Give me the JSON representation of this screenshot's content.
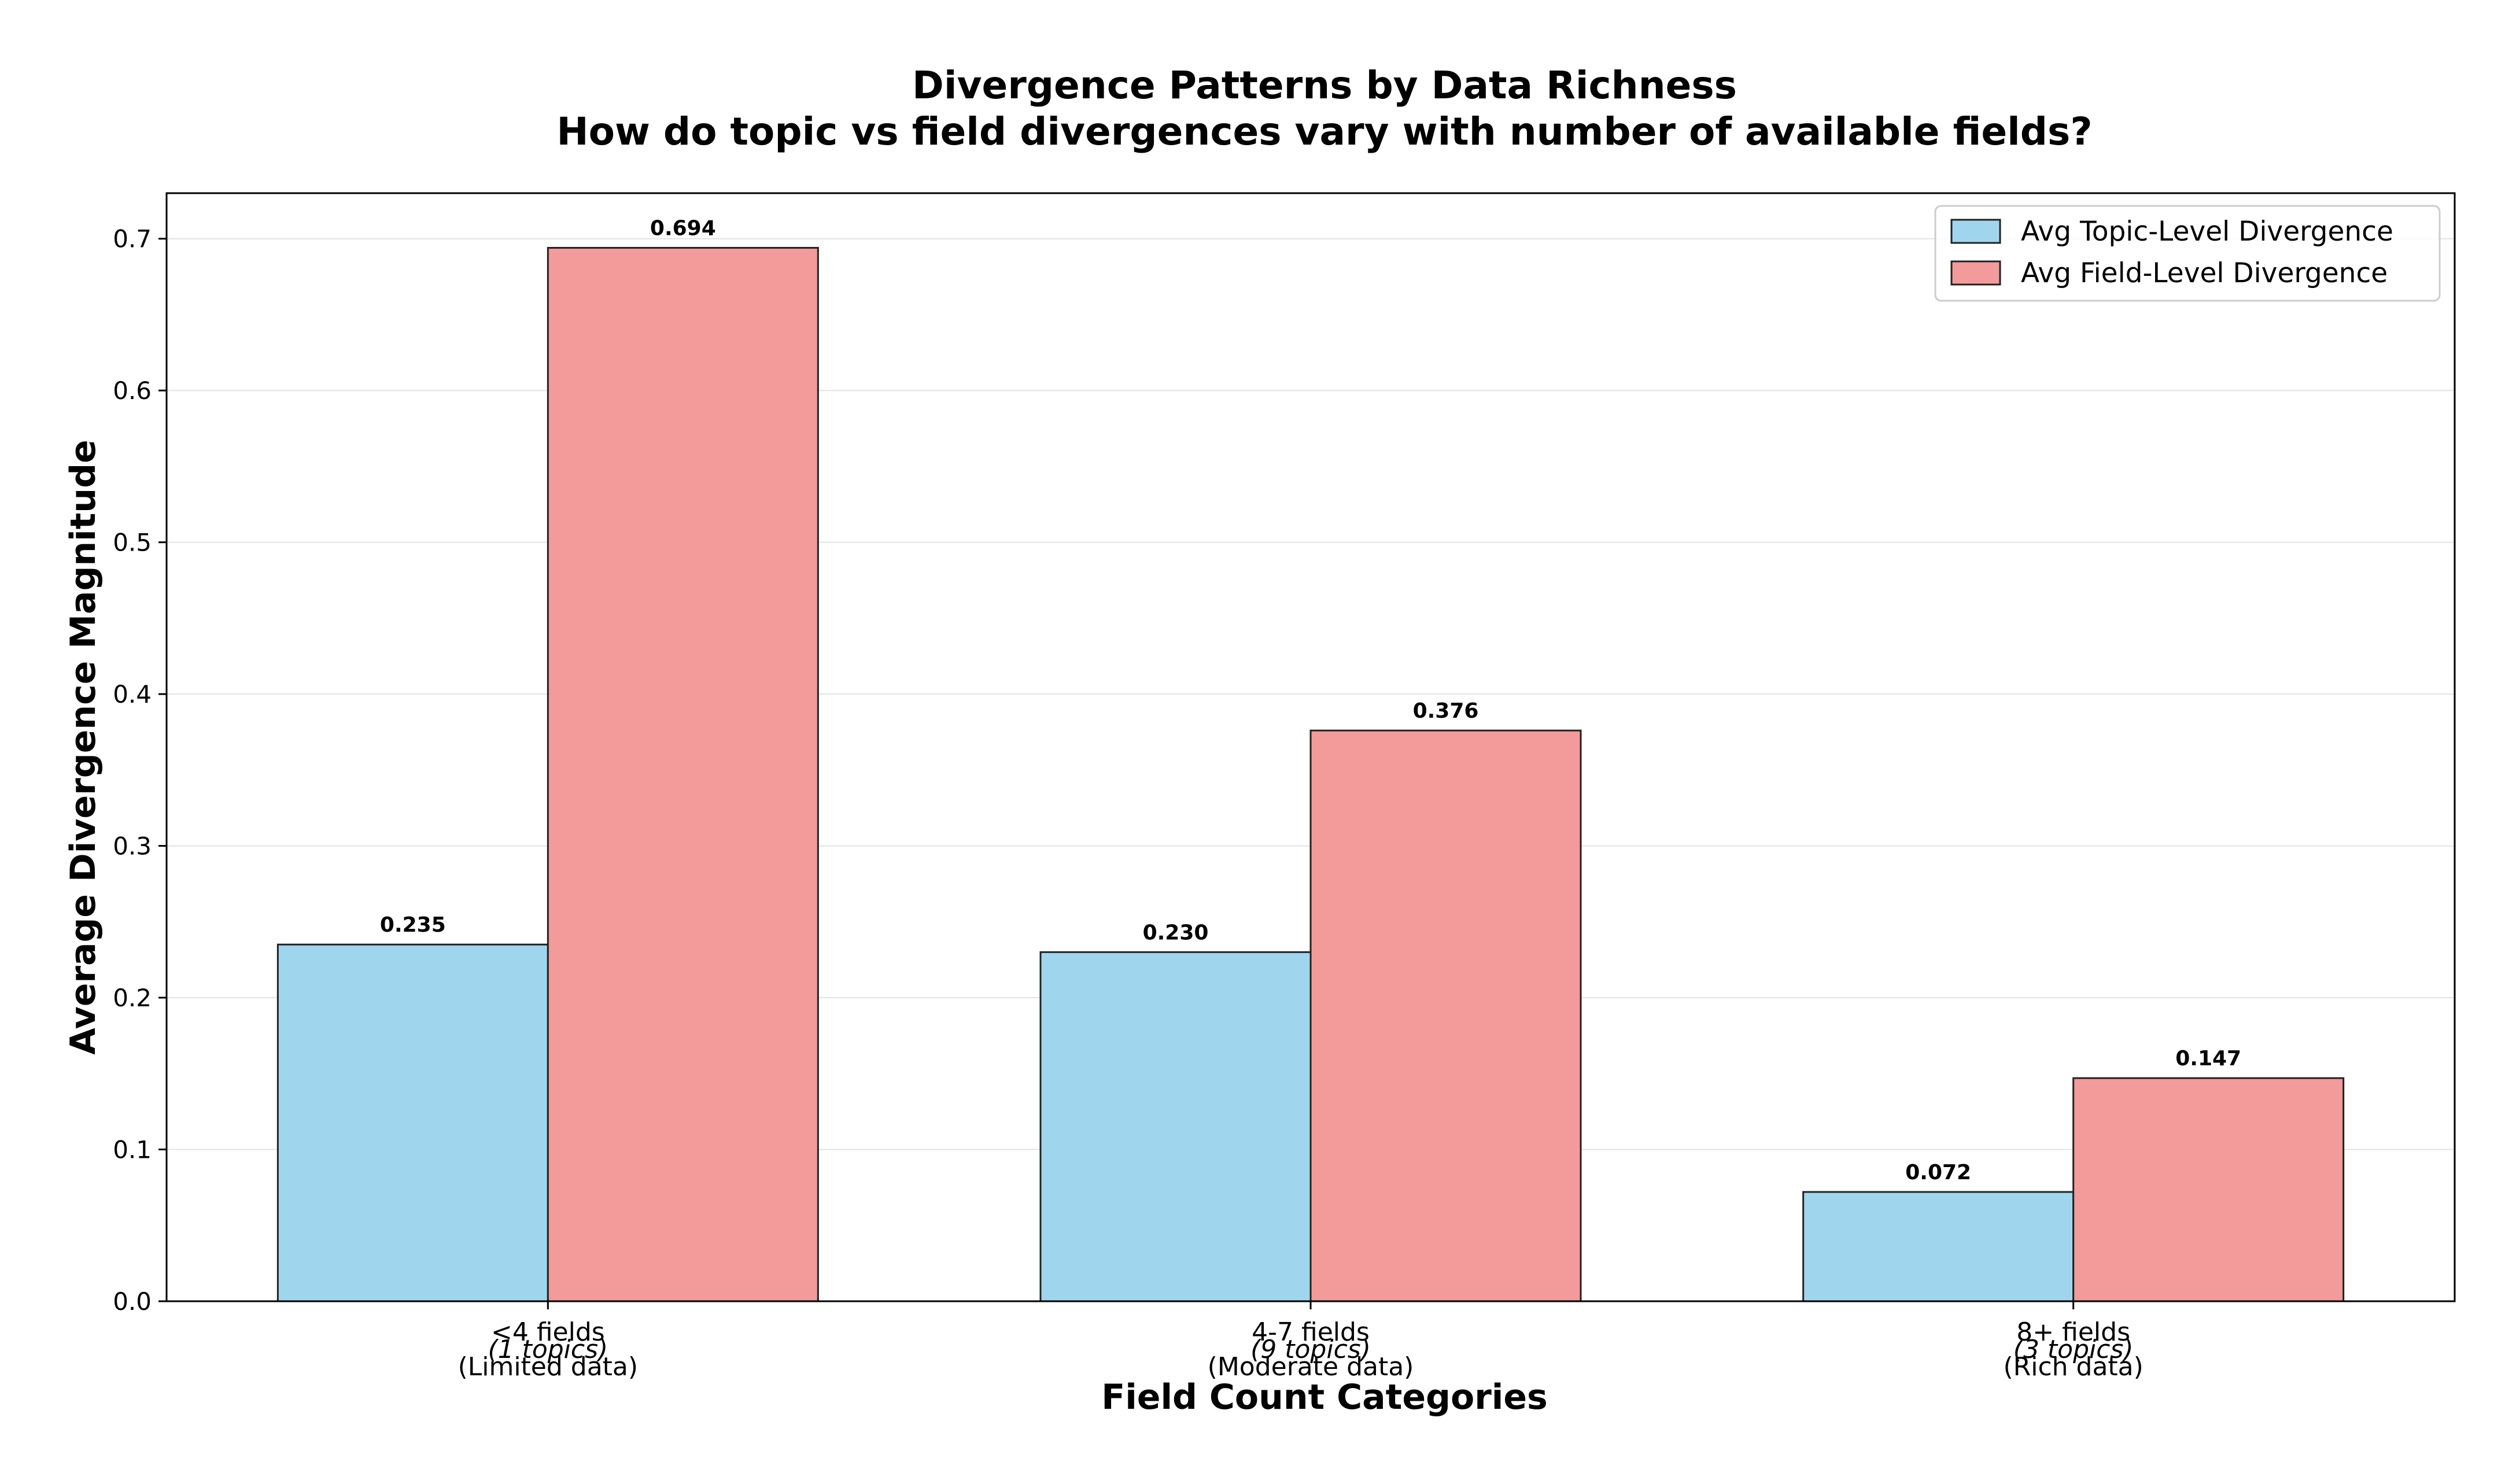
{
  "chart_data": {
    "type": "bar",
    "title": "Divergence Patterns by Data Richness",
    "subtitle": "How do topic vs field divergences vary with number of available fields?",
    "xlabel": "Field Count Categories",
    "ylabel": "Average Divergence Magnitude",
    "ylim": [
      0,
      0.73
    ],
    "yticks": [
      "0.0",
      "0.1",
      "0.2",
      "0.3",
      "0.4",
      "0.5",
      "0.6",
      "0.7"
    ],
    "grid": "horizontal",
    "legend_position": "top-right",
    "categories": [
      {
        "label": "<4 fields",
        "detail": "(Limited data)",
        "note": "(1 topics)"
      },
      {
        "label": "4-7 fields",
        "detail": "(Moderate data)",
        "note": "(9 topics)"
      },
      {
        "label": "8+ fields",
        "detail": "(Rich data)",
        "note": "(3 topics)"
      }
    ],
    "series": [
      {
        "name": "Avg Topic-Level Divergence",
        "color": "#a0d6ed",
        "values": [
          0.235,
          0.23,
          0.072
        ],
        "labels": [
          "0.235",
          "0.230",
          "0.072"
        ]
      },
      {
        "name": "Avg Field-Level Divergence",
        "color": "#f29b9a",
        "values": [
          0.694,
          0.376,
          0.147
        ],
        "labels": [
          "0.694",
          "0.376",
          "0.147"
        ]
      }
    ]
  }
}
